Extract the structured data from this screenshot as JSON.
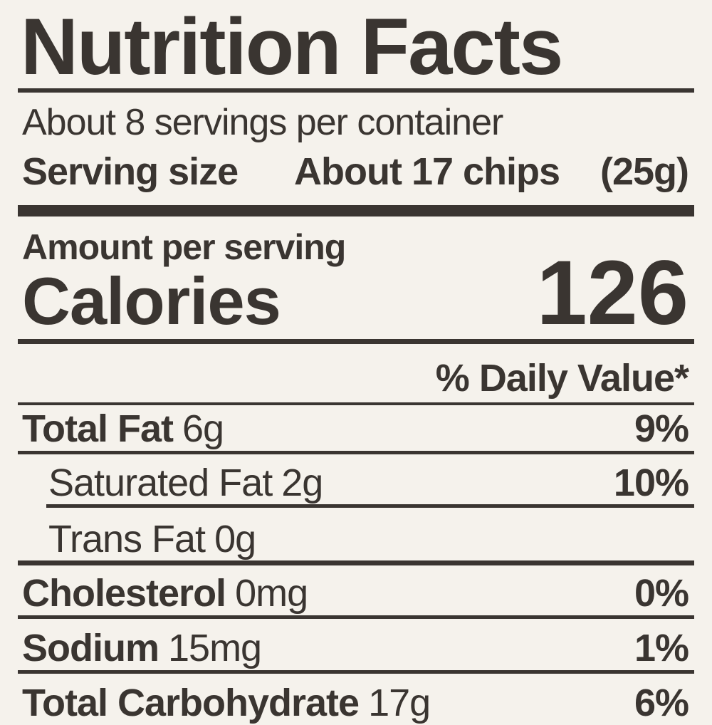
{
  "label": {
    "title": "Nutrition Facts",
    "servings_per_container": "About 8 servings per container",
    "serving_size": {
      "label": "Serving size",
      "value": "About 17 chips",
      "weight": "(25g)"
    },
    "amount_per_serving": "Amount per serving",
    "calories": {
      "label": "Calories",
      "value": "126"
    },
    "daily_value_header": "% Daily Value*",
    "nutrients": [
      {
        "name": "Total Fat",
        "amount": "6g",
        "dv": "9%"
      },
      {
        "name": "Saturated Fat",
        "amount": "2g",
        "dv": "10%"
      },
      {
        "name": "Trans Fat",
        "amount": "0g",
        "dv": ""
      },
      {
        "name": "Cholesterol",
        "amount": "0mg",
        "dv": "0%"
      },
      {
        "name": "Sodium",
        "amount": "15mg",
        "dv": "1%"
      },
      {
        "name": "Total Carbohydrate",
        "amount": "17g",
        "dv": "6%"
      }
    ],
    "colors": {
      "background": "#f5f2ec",
      "ink": "#3a3531"
    }
  }
}
